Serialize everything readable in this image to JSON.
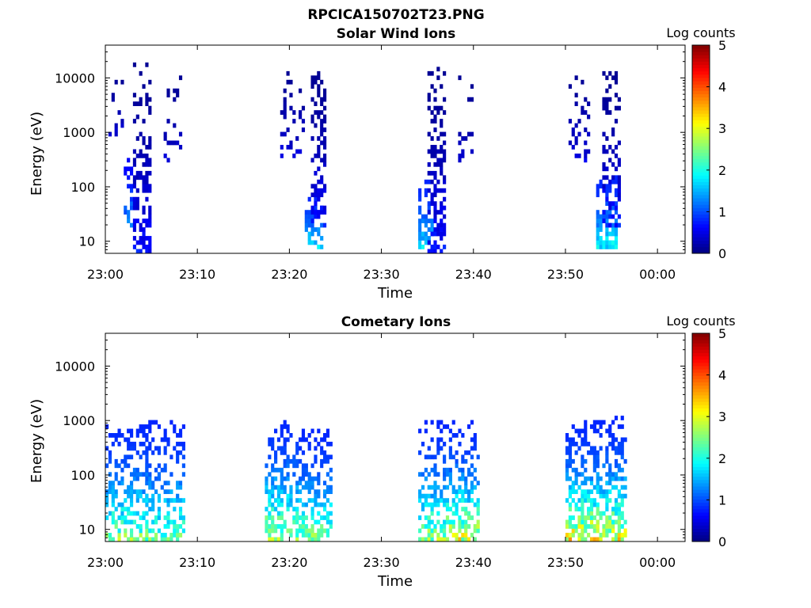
{
  "figure": {
    "title": "RPCICA150702T23.PNG"
  },
  "chart_data": [
    {
      "type": "heatmap",
      "title": "Solar Wind Ions",
      "xlabel": "Time",
      "ylabel": "Energy (eV)",
      "x_ticks": [
        "23:00",
        "23:10",
        "23:20",
        "23:30",
        "23:40",
        "23:50",
        "00:00"
      ],
      "y_ticks": [
        "10",
        "100",
        "1000",
        "10000"
      ],
      "y_scale": "log",
      "ylim": [
        6,
        40000
      ],
      "xlim_minutes": [
        0,
        63
      ],
      "colorbar": {
        "label": "Log counts",
        "range": [
          0,
          5
        ],
        "ticks": [
          "0",
          "1",
          "2",
          "3",
          "4",
          "5"
        ],
        "colormap": "jet"
      },
      "clusters": [
        {
          "t": [
            0.2,
            2.0
          ],
          "e": [
            600,
            15000
          ],
          "level": [
            0.1,
            0.6
          ],
          "density": 0.18
        },
        {
          "t": [
            2.0,
            3.0
          ],
          "e": [
            20,
            300
          ],
          "level": [
            0.6,
            1.8
          ],
          "density": 0.6
        },
        {
          "t": [
            3.0,
            4.8
          ],
          "e": [
            6,
            16000
          ],
          "level": [
            0.1,
            0.9
          ],
          "density": 0.55
        },
        {
          "t": [
            6.5,
            8.2
          ],
          "e": [
            300,
            14000
          ],
          "level": [
            0.1,
            0.5
          ],
          "density": 0.25
        },
        {
          "t": [
            19.0,
            21.5
          ],
          "e": [
            400,
            14000
          ],
          "level": [
            0.1,
            0.6
          ],
          "density": 0.2
        },
        {
          "t": [
            21.8,
            23.5
          ],
          "e": [
            8,
            60
          ],
          "level": [
            0.8,
            2.2
          ],
          "density": 0.7
        },
        {
          "t": [
            22.5,
            24.0
          ],
          "e": [
            20,
            13000
          ],
          "level": [
            0.1,
            0.9
          ],
          "density": 0.55
        },
        {
          "t": [
            34.0,
            35.5
          ],
          "e": [
            8,
            120
          ],
          "level": [
            0.8,
            2.0
          ],
          "density": 0.6
        },
        {
          "t": [
            35.3,
            37.0
          ],
          "e": [
            6,
            15000
          ],
          "level": [
            0.1,
            0.9
          ],
          "density": 0.55
        },
        {
          "t": [
            38.5,
            40.0
          ],
          "e": [
            300,
            12000
          ],
          "level": [
            0.1,
            0.5
          ],
          "density": 0.25
        },
        {
          "t": [
            50.5,
            52.5
          ],
          "e": [
            300,
            16000
          ],
          "level": [
            0.1,
            0.6
          ],
          "density": 0.2
        },
        {
          "t": [
            53.5,
            55.5
          ],
          "e": [
            8,
            150
          ],
          "level": [
            0.8,
            2.2
          ],
          "density": 0.7
        },
        {
          "t": [
            54.0,
            56.0
          ],
          "e": [
            20,
            12000
          ],
          "level": [
            0.1,
            0.9
          ],
          "density": 0.5
        }
      ]
    },
    {
      "type": "heatmap",
      "title": "Cometary Ions",
      "xlabel": "Time",
      "ylabel": "Energy (eV)",
      "x_ticks": [
        "23:00",
        "23:10",
        "23:20",
        "23:30",
        "23:40",
        "23:50",
        "00:00"
      ],
      "y_ticks": [
        "10",
        "100",
        "1000",
        "10000"
      ],
      "y_scale": "log",
      "ylim": [
        6,
        40000
      ],
      "xlim_minutes": [
        0,
        63
      ],
      "colorbar": {
        "label": "Log counts",
        "range": [
          0,
          5
        ],
        "ticks": [
          "0",
          "1",
          "2",
          "3",
          "4",
          "5"
        ],
        "colormap": "jet"
      },
      "clusters": [
        {
          "t": [
            0.0,
            4.5
          ],
          "e": [
            6,
            900
          ],
          "level": [
            0.8,
            3.0
          ],
          "density": 0.6
        },
        {
          "t": [
            4.5,
            8.5
          ],
          "e": [
            6,
            900
          ],
          "level": [
            0.8,
            2.8
          ],
          "density": 0.55
        },
        {
          "t": [
            17.5,
            21.0
          ],
          "e": [
            6,
            1100
          ],
          "level": [
            0.8,
            3.3
          ],
          "density": 0.6
        },
        {
          "t": [
            21.0,
            24.5
          ],
          "e": [
            6,
            700
          ],
          "level": [
            0.8,
            3.0
          ],
          "density": 0.55
        },
        {
          "t": [
            34.0,
            37.0
          ],
          "e": [
            6,
            900
          ],
          "level": [
            0.8,
            3.2
          ],
          "density": 0.6
        },
        {
          "t": [
            37.0,
            40.5
          ],
          "e": [
            6,
            1000
          ],
          "level": [
            0.8,
            3.5
          ],
          "density": 0.6
        },
        {
          "t": [
            50.0,
            53.5
          ],
          "e": [
            6,
            900
          ],
          "level": [
            0.8,
            3.8
          ],
          "density": 0.65
        },
        {
          "t": [
            53.5,
            56.5
          ],
          "e": [
            6,
            1100
          ],
          "level": [
            0.8,
            3.6
          ],
          "density": 0.6
        }
      ]
    }
  ]
}
